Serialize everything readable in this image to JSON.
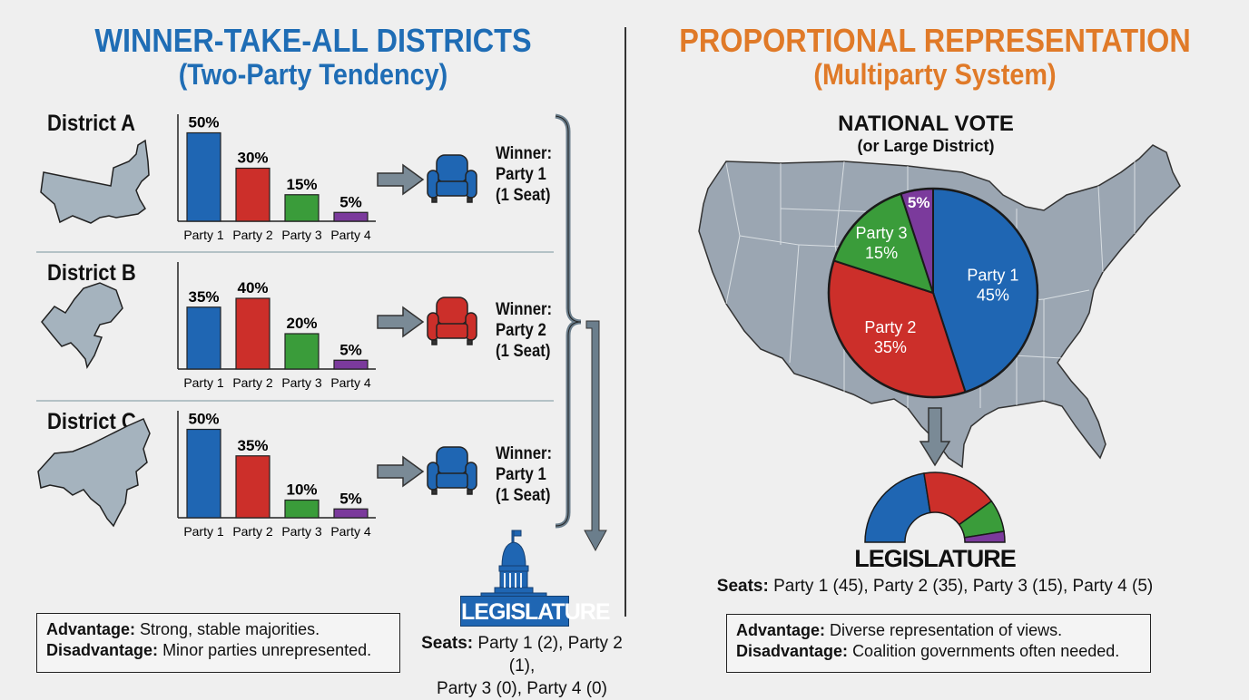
{
  "left": {
    "title": "WINNER-TAKE-ALL DISTRICTS",
    "subtitle": "(Two-Party Tendency)",
    "title_color": "#1f6db5",
    "districts": [
      {
        "label": "District A",
        "winner_line1": "Winner:",
        "winner_line2": "Party 1",
        "winner_line3": "(1 Seat)",
        "winner_color": "#1f66b3"
      },
      {
        "label": "District B",
        "winner_line1": "Winner:",
        "winner_line2": "Party 2",
        "winner_line3": "(1 Seat)",
        "winner_color": "#cc2f2a"
      },
      {
        "label": "District C",
        "winner_line1": "Winner:",
        "winner_line2": "Party 1",
        "winner_line3": "(1 Seat)",
        "winner_color": "#1f66b3"
      }
    ],
    "legislature_label": "LEGISLATURE",
    "seats_label": "Seats:",
    "seats_line1": "Party 1 (2), Party 2 (1),",
    "seats_line2": "Party 3 (0), Party 4 (0)",
    "advantage_label": "Advantage:",
    "advantage_text": "Strong, stable majorities.",
    "disadvantage_label": "Disadvantage:",
    "disadvantage_text": "Minor parties unrepresented."
  },
  "right": {
    "title": "PROPORTIONAL REPRESENTATION",
    "subtitle": "(Multiparty System)",
    "title_color": "#e07a28",
    "national_vote": "NATIONAL VOTE",
    "national_vote_sub": "(or Large District)",
    "legislature_label": "LEGISLATURE",
    "seats_label": "Seats:",
    "seats_text": "Party 1 (45), Party 2 (35), Party 3 (15), Party 4 (5)",
    "advantage_label": "Advantage:",
    "advantage_text": "Diverse representation of views.",
    "disadvantage_label": "Disadvantage:",
    "disadvantage_text": "Coalition governments often needed."
  },
  "colors": {
    "party1": "#1f66b3",
    "party2": "#cc2f2a",
    "party3": "#3a9c3a",
    "party4": "#7b3a9c",
    "map": "#9ba6b2",
    "arrow": "#6b7e8c"
  },
  "chart_data": [
    {
      "type": "bar",
      "title": "District A",
      "categories": [
        "Party 1",
        "Party 2",
        "Party 3",
        "Party 4"
      ],
      "values": [
        50,
        30,
        15,
        5
      ],
      "labels": [
        "50%",
        "30%",
        "15%",
        "5%"
      ]
    },
    {
      "type": "bar",
      "title": "District B",
      "categories": [
        "Party 1",
        "Party 2",
        "Party 3",
        "Party 4"
      ],
      "values": [
        35,
        40,
        20,
        5
      ],
      "labels": [
        "35%",
        "40%",
        "20%",
        "5%"
      ]
    },
    {
      "type": "bar",
      "title": "District C",
      "categories": [
        "Party 1",
        "Party 2",
        "Party 3",
        "Party 4"
      ],
      "values": [
        50,
        35,
        10,
        5
      ],
      "labels": [
        "50%",
        "35%",
        "10%",
        "5%"
      ]
    },
    {
      "type": "pie",
      "title": "NATIONAL VOTE",
      "categories": [
        "Party 1",
        "Party 2",
        "Party 3",
        "Party 4"
      ],
      "values": [
        45,
        35,
        15,
        5
      ],
      "labels": [
        "45%",
        "35%",
        "15%",
        "5%"
      ]
    },
    {
      "type": "pie",
      "title": "LEGISLATURE",
      "shape": "semicircle",
      "categories": [
        "Party 1",
        "Party 2",
        "Party 3",
        "Party 4"
      ],
      "values": [
        45,
        35,
        15,
        5
      ]
    }
  ]
}
